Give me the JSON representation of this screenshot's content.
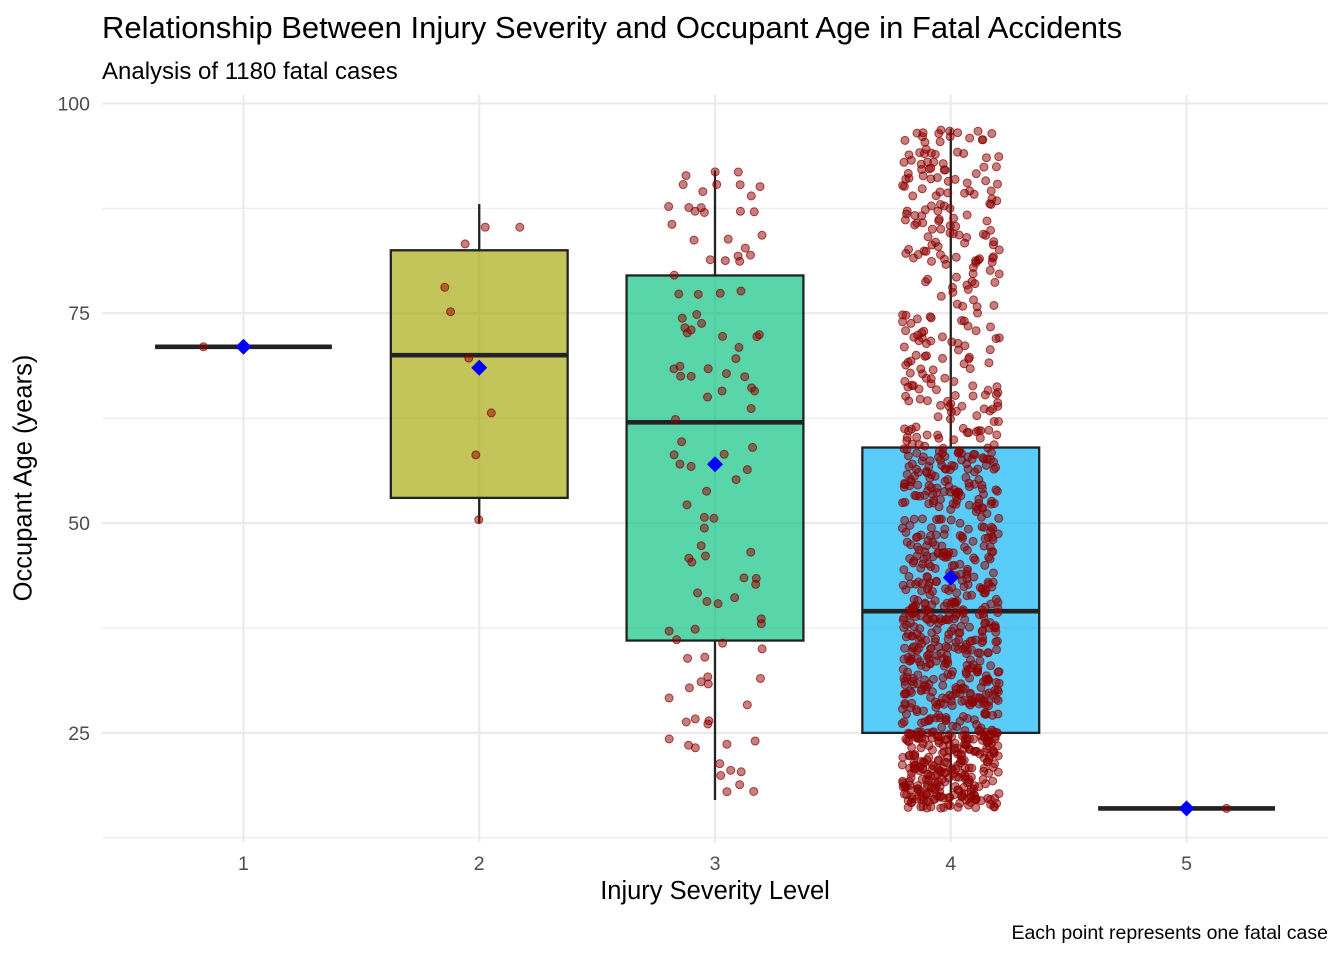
{
  "chart_data": {
    "type": "boxplot",
    "title": "Relationship Between Injury Severity and Occupant Age in Fatal Accidents",
    "subtitle": "Analysis of 1180 fatal cases",
    "caption": "Each point represents one fatal case",
    "xlabel": "Injury Severity Level",
    "ylabel": "Occupant Age (years)",
    "ylim": [
      12,
      101
    ],
    "y_ticks": [
      25,
      50,
      75,
      100
    ],
    "categories": [
      "1",
      "2",
      "3",
      "4",
      "5"
    ],
    "boxes": [
      {
        "category": "1",
        "lower_whisker": 71,
        "q1": 71,
        "median": 71,
        "q3": 71,
        "upper_whisker": 71,
        "mean": 71,
        "n": 1,
        "fill": "#F8766D"
      },
      {
        "category": "2",
        "lower_whisker": 50,
        "q1": 53,
        "median": 70,
        "q3": 82.5,
        "upper_whisker": 88,
        "mean": 68.5,
        "n": 9,
        "fill": "#A3A500"
      },
      {
        "category": "3",
        "lower_whisker": 17,
        "q1": 36,
        "median": 62,
        "q3": 79.5,
        "upper_whisker": 92,
        "mean": 57,
        "n": 112,
        "fill": "#00BF7D"
      },
      {
        "category": "4",
        "lower_whisker": 16,
        "q1": 25,
        "median": 39.5,
        "q3": 59,
        "upper_whisker": 97,
        "mean": 43.5,
        "n": 1057,
        "fill": "#00B0F6"
      },
      {
        "category": "5",
        "lower_whisker": 16,
        "q1": 16,
        "median": 16,
        "q3": 16,
        "upper_whisker": 16,
        "mean": 16,
        "n": 1,
        "fill": "#E76BF3"
      }
    ],
    "point_color": "#8B0000",
    "mean_marker_color": "#0000FF",
    "grid": true
  }
}
